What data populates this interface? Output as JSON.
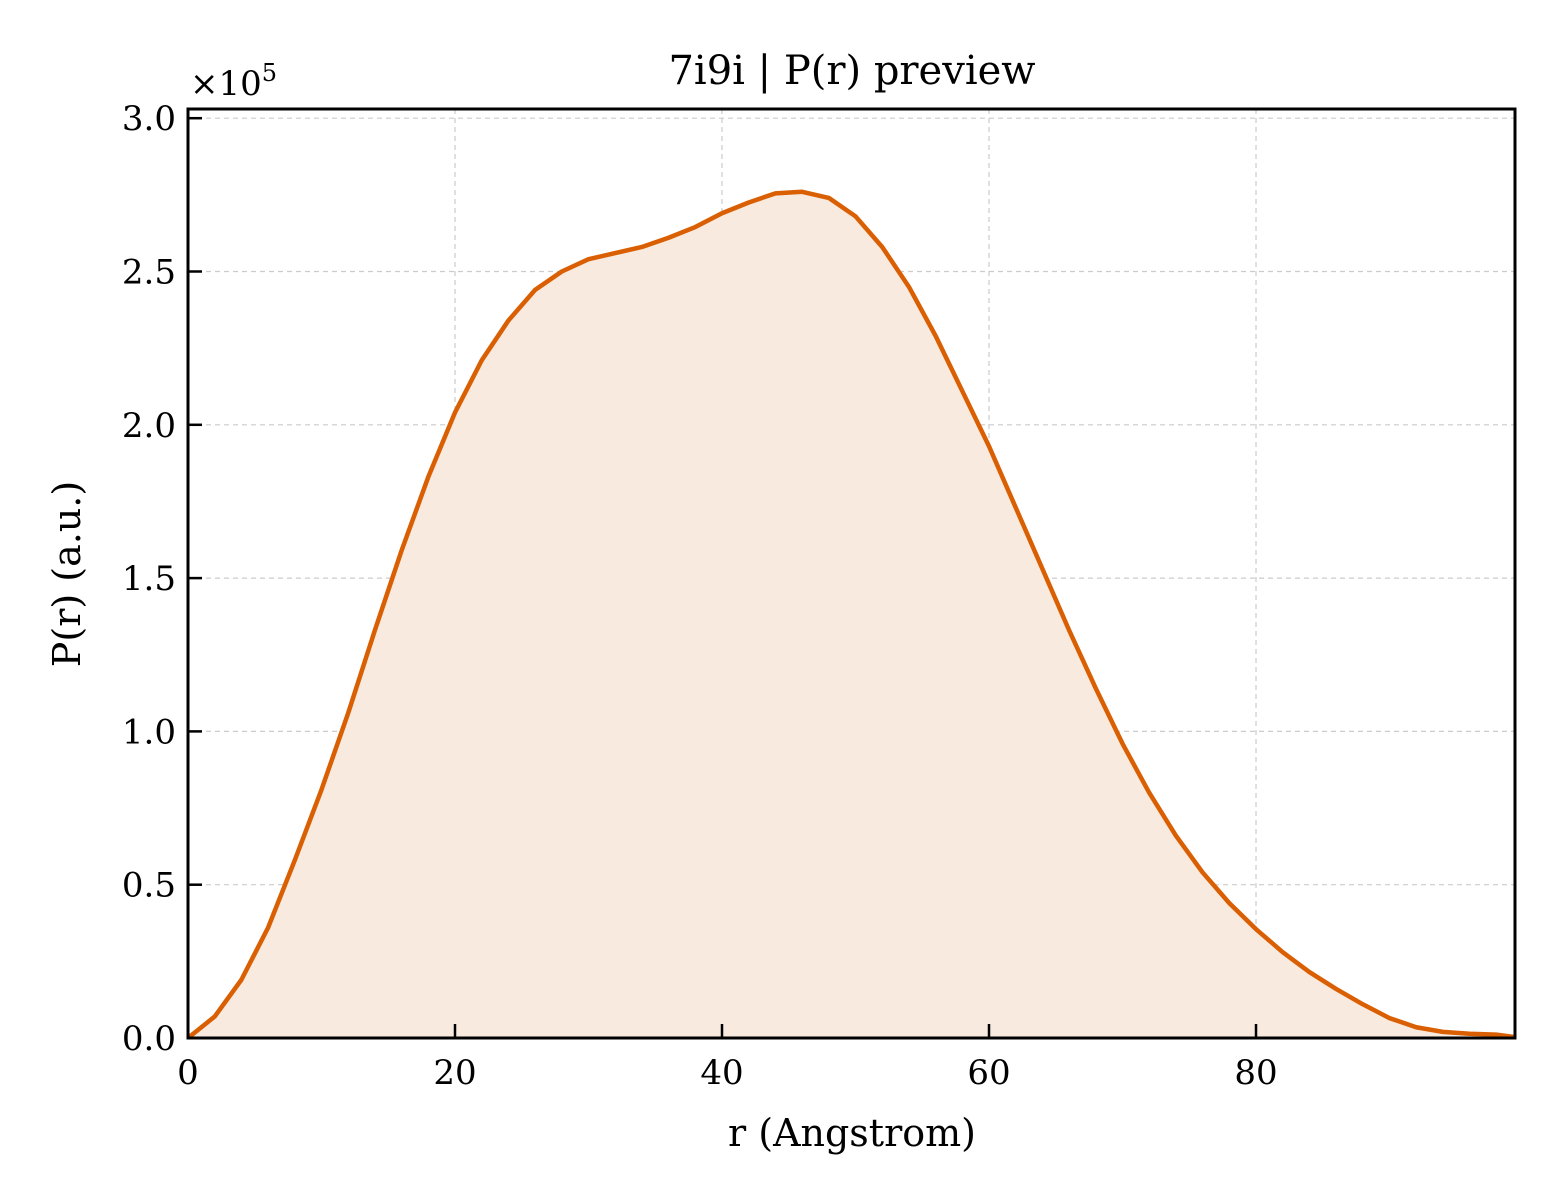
{
  "chart_data": {
    "type": "area",
    "title": "7i9i | P(r) preview",
    "xlabel": "r (Angstrom)",
    "ylabel": "P(r) (a.u.)",
    "y_multiplier": {
      "base": "×10",
      "exponent": "5"
    },
    "xlim": [
      0,
      99.4
    ],
    "ylim": [
      0,
      3.03
    ],
    "xticks": [
      0,
      20,
      40,
      60,
      80
    ],
    "xtick_labels": [
      "0",
      "20",
      "40",
      "60",
      "80"
    ],
    "yticks": [
      0,
      0.5,
      1.0,
      1.5,
      2.0,
      2.5,
      3.0
    ],
    "ytick_labels": [
      "0.0",
      "0.5",
      "1.0",
      "1.5",
      "2.0",
      "2.5",
      "3.0"
    ],
    "grid": true,
    "colors": {
      "line": "#d95f02",
      "fill": "#f8eadf",
      "grid": "#cccccc",
      "axes": "#000000"
    },
    "series": [
      {
        "x": [
          0,
          2,
          4,
          6,
          8,
          10,
          12,
          14,
          16,
          18,
          20,
          22,
          24,
          26,
          28,
          30,
          32,
          34,
          36,
          38,
          40,
          42,
          44,
          46,
          48,
          50,
          52,
          54,
          56,
          58,
          60,
          62,
          64,
          66,
          68,
          70,
          72,
          74,
          76,
          78,
          80,
          82,
          84,
          86,
          88,
          90,
          92,
          94,
          96,
          98,
          99.4
        ],
        "y": [
          0.0,
          0.07,
          0.19,
          0.36,
          0.58,
          0.81,
          1.06,
          1.33,
          1.59,
          1.83,
          2.04,
          2.21,
          2.34,
          2.44,
          2.5,
          2.54,
          2.56,
          2.58,
          2.61,
          2.645,
          2.69,
          2.725,
          2.755,
          2.76,
          2.74,
          2.68,
          2.58,
          2.45,
          2.29,
          2.11,
          1.93,
          1.73,
          1.53,
          1.33,
          1.14,
          0.96,
          0.8,
          0.66,
          0.54,
          0.44,
          0.355,
          0.28,
          0.215,
          0.16,
          0.11,
          0.065,
          0.035,
          0.02,
          0.014,
          0.011,
          0.003
        ]
      }
    ]
  }
}
